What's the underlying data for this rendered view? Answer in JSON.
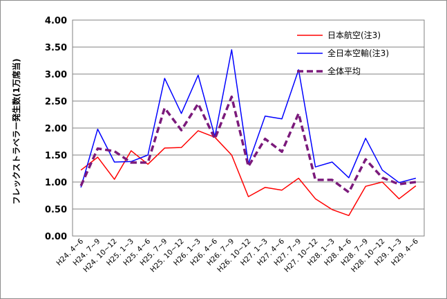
{
  "chart_data": {
    "type": "line",
    "title": "",
    "xlabel": "",
    "ylabel": "フレックストラベラー発生数(1万席当)",
    "ylim": [
      0,
      4
    ],
    "y_ticks": [
      "0.00",
      "0.50",
      "1.00",
      "1.50",
      "2.00",
      "2.50",
      "3.00",
      "3.50",
      "4.00"
    ],
    "grid": true,
    "legend_position": "top-right",
    "categories": [
      "H24. 4~6",
      "H24. 7~9",
      "H24. 10~12",
      "H25. 1~3",
      "H25. 4~6",
      "H25. 7~9",
      "H25. 10~12",
      "H26. 1~3",
      "H26. 4~6",
      "H26. 7~9",
      "H26. 10~12",
      "H27. 1~3",
      "H27. 4~6",
      "H27. 7~9",
      "H27. 10~12",
      "H28. 1~3",
      "H28. 4~6",
      "H28. 7~9",
      "H28. 10~12",
      "H29. 1~3",
      "H29. 4~6"
    ],
    "series": [
      {
        "name": "日本航空(注3)",
        "color": "#ff0000",
        "style": "solid",
        "values": [
          1.22,
          1.46,
          1.05,
          1.58,
          1.33,
          1.63,
          1.64,
          1.95,
          1.83,
          1.5,
          0.73,
          0.9,
          0.85,
          1.07,
          0.69,
          0.49,
          0.38,
          0.92,
          1.0,
          0.69,
          0.93
        ]
      },
      {
        "name": "全日本空輸(注3)",
        "color": "#0000ff",
        "style": "solid",
        "values": [
          0.9,
          1.98,
          1.37,
          1.38,
          1.5,
          2.92,
          2.27,
          2.98,
          1.84,
          3.45,
          1.34,
          2.22,
          2.17,
          3.08,
          1.28,
          1.37,
          1.08,
          1.81,
          1.22,
          0.99,
          1.07
        ]
      },
      {
        "name": "全体平均",
        "color": "#7b1a7b",
        "style": "dashed",
        "values": [
          0.93,
          1.62,
          1.57,
          1.36,
          1.36,
          2.37,
          1.96,
          2.45,
          1.8,
          2.58,
          1.29,
          1.8,
          1.56,
          2.27,
          1.04,
          1.04,
          0.81,
          1.42,
          1.08,
          0.96,
          1.0
        ]
      }
    ]
  }
}
